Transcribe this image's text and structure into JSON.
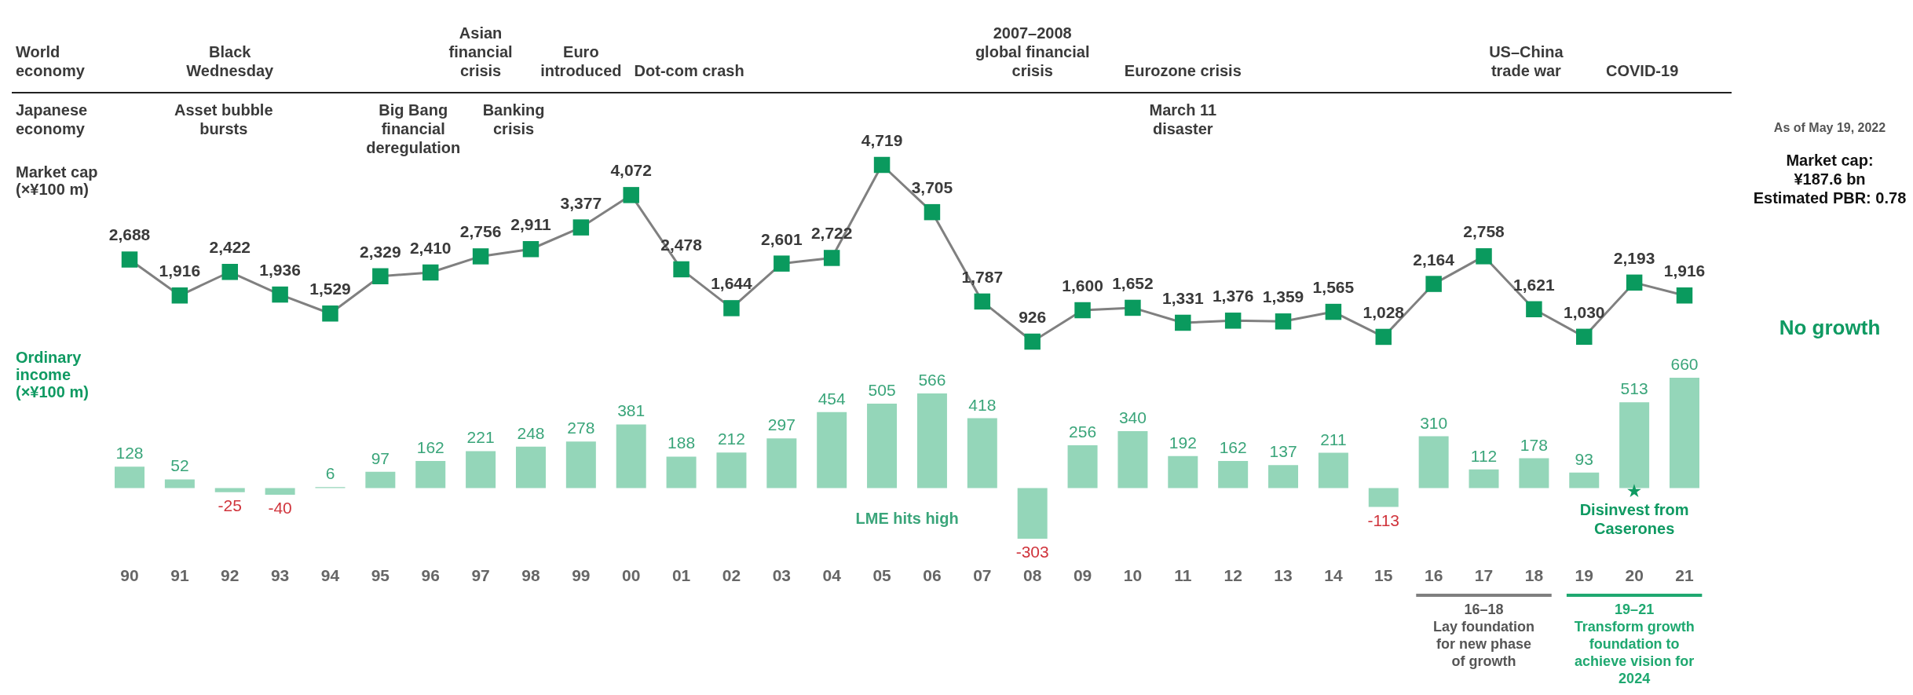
{
  "chart_data": [
    {
      "type": "line",
      "categories": [
        "90",
        "91",
        "92",
        "93",
        "94",
        "95",
        "96",
        "97",
        "98",
        "99",
        "00",
        "01",
        "02",
        "03",
        "04",
        "05",
        "06",
        "07",
        "08",
        "09",
        "10",
        "11",
        "12",
        "13",
        "14",
        "15",
        "16",
        "17",
        "18",
        "19",
        "20",
        "21"
      ],
      "series": [
        {
          "name": "Market cap\n(×¥100 m)",
          "color": "#0a9a5e",
          "values": [
            2688,
            1916,
            2422,
            1936,
            1529,
            2329,
            2410,
            2756,
            2911,
            3377,
            4072,
            2478,
            1644,
            2601,
            2722,
            4719,
            3705,
            1787,
            926,
            1600,
            1652,
            1331,
            1376,
            1359,
            1565,
            1028,
            2164,
            2758,
            1621,
            1030,
            2193,
            1916
          ],
          "value_labels": [
            "2,688",
            "1,916",
            "2,422",
            "1,936",
            "1,529",
            "2,329",
            "2,410",
            "2,756",
            "2,911",
            "3,377",
            "4,072",
            "2,478",
            "1,644",
            "2,601",
            "2,722",
            "4,719",
            "3,705",
            "1,787",
            "926",
            "1,600",
            "1,652",
            "1,331",
            "1,376",
            "1,359",
            "1,565",
            "1,028",
            "2,164",
            "2,758",
            "1,621",
            "1,030",
            "2,193",
            "1,916"
          ]
        }
      ],
      "marker": "square",
      "line_style": "solid",
      "tick_labels": false,
      "annotations": [
        "World\neconomy",
        "Japanese\neconomy",
        "Black\nWednesday",
        "Asian\nfinancial\ncrisis",
        "Euro\nintroduced",
        "Dot-com crash",
        "2007–2008\nglobal financial\ncrisis",
        "Eurozone crisis",
        "US–China\ntrade war",
        "COVID-19",
        "Asset bubble\nbursts",
        "Big Bang\nfinancial\nderegulation",
        "Banking\ncrisis",
        "March 11\ndisaster",
        "As of May 19, 2022",
        "Market cap:\n¥187.6 bn\nEstimated PBR: 0.78",
        "No growth"
      ]
    },
    {
      "type": "bar",
      "categories": [
        "90",
        "91",
        "92",
        "93",
        "94",
        "95",
        "96",
        "97",
        "98",
        "99",
        "00",
        "01",
        "02",
        "03",
        "04",
        "05",
        "06",
        "07",
        "08",
        "09",
        "10",
        "11",
        "12",
        "13",
        "14",
        "15",
        "16",
        "17",
        "18",
        "19",
        "20",
        "21"
      ],
      "series": [
        {
          "name": "Ordinary\nincome\n(×¥100 m)",
          "color": "#94d6b9",
          "values": [
            128,
            52,
            -25,
            -40,
            6,
            97,
            162,
            221,
            248,
            278,
            381,
            188,
            212,
            297,
            454,
            505,
            566,
            418,
            -303,
            256,
            340,
            192,
            162,
            137,
            211,
            -113,
            310,
            112,
            178,
            93,
            513,
            660
          ]
        }
      ],
      "data_labels": true,
      "tick_labels": "x",
      "annotations": [
        "LME hits high",
        "★\nDisinvest from\nCaserones",
        "16–18\nLay foundation\nfor new phase\nof growth",
        "19–21\nTransform growth\nfoundation to\nachieve vision for\n2024"
      ]
    }
  ]
}
